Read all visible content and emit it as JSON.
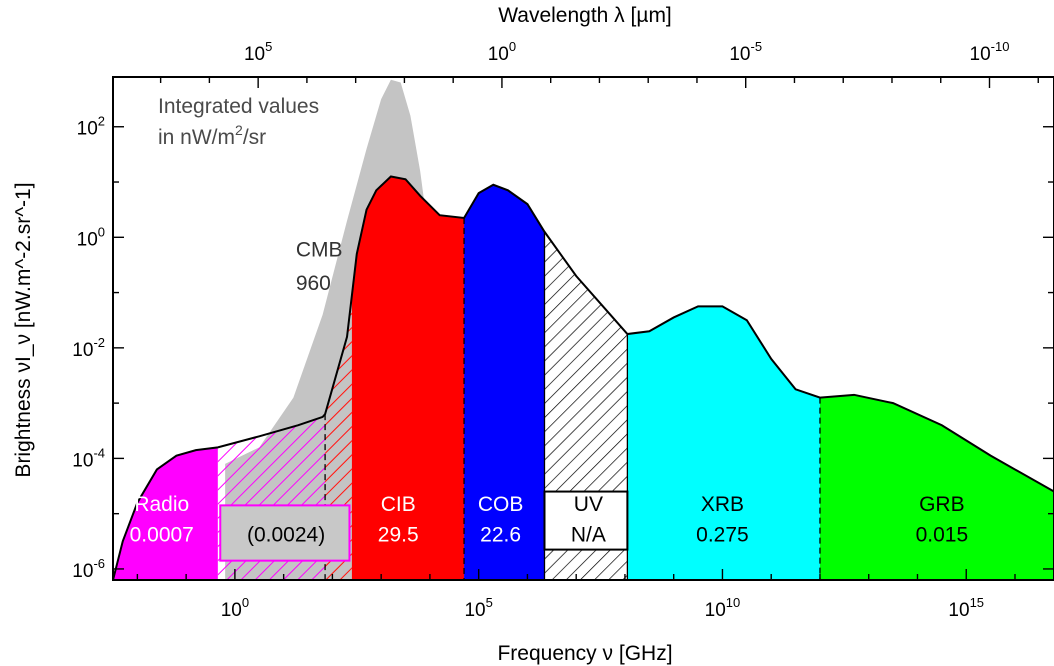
{
  "chart_data": {
    "type": "area",
    "title": "",
    "xlabel": "Frequency ν [GHz]",
    "x2label": "Wavelength λ [µm]",
    "ylabel": "Brightness νI_ν [nW.m^-2.sr^-1]",
    "x_scale": "log",
    "y_scale": "log",
    "xlim_log10_GHz": [
      -2.5,
      16.8
    ],
    "ylim_log10": [
      -6.2,
      2.9
    ],
    "x_ticks": [
      {
        "label": "10",
        "exp": "0"
      },
      {
        "label": "10",
        "exp": "5"
      },
      {
        "label": "10",
        "exp": "10"
      },
      {
        "label": "10",
        "exp": "15"
      }
    ],
    "x2_ticks": [
      {
        "label": "10",
        "exp": "5"
      },
      {
        "label": "10",
        "exp": "0"
      },
      {
        "label": "10",
        "exp": "-5"
      },
      {
        "label": "10",
        "exp": "-10"
      }
    ],
    "y_ticks": [
      {
        "label": "10",
        "exp": "2"
      },
      {
        "label": "10",
        "exp": "0"
      },
      {
        "label": "10",
        "exp": "-2"
      },
      {
        "label": "10",
        "exp": "-4"
      },
      {
        "label": "10",
        "exp": "-6"
      }
    ],
    "annotation": {
      "line1": "Integrated values",
      "line2a": "in nW/m",
      "line2sup": "2",
      "line2b": "/sr"
    },
    "cmb": {
      "name": "CMB",
      "value": "960",
      "points": [
        [
          -0.2,
          -4.1
        ],
        [
          0.5,
          -3.8
        ],
        [
          1.2,
          -2.9
        ],
        [
          1.8,
          -1.4
        ],
        [
          2.3,
          0.3
        ],
        [
          2.7,
          1.6
        ],
        [
          3.0,
          2.5
        ],
        [
          3.2,
          2.85
        ],
        [
          3.4,
          2.8
        ],
        [
          3.6,
          2.2
        ],
        [
          3.8,
          1.2
        ],
        [
          3.95,
          0.2
        ],
        [
          4.1,
          -1.0
        ],
        [
          4.2,
          -2.0
        ]
      ]
    },
    "cib_region": {
      "name": "CIB",
      "value": "29.5",
      "x_range": [
        2.4,
        4.7
      ]
    },
    "cob_region": {
      "name": "COB",
      "value": "22.6",
      "x_range": [
        4.7,
        6.35
      ]
    },
    "uv_region": {
      "name": "UV",
      "value": "N/A",
      "x_range": [
        6.35,
        8.05
      ]
    },
    "xrb_region": {
      "name": "XRB",
      "value": "0.275",
      "x_range": [
        8.05,
        12.0
      ]
    },
    "grb_region": {
      "name": "GRB",
      "value": "0.015",
      "x_range": [
        12.0,
        16.8
      ]
    },
    "radio_region": {
      "name": "Radio",
      "value": "0.0007",
      "x_range": [
        -2.5,
        -0.35
      ]
    },
    "unknown_region": {
      "name": "",
      "value": "(0.0024)",
      "x_range": [
        -0.35,
        2.4
      ]
    },
    "envelope": [
      [
        -2.5,
        -6.2
      ],
      [
        -2.3,
        -5.5
      ],
      [
        -2.0,
        -4.8
      ],
      [
        -1.6,
        -4.2
      ],
      [
        -1.2,
        -3.95
      ],
      [
        -0.8,
        -3.85
      ],
      [
        -0.35,
        -3.8
      ],
      [
        0.5,
        -3.6
      ],
      [
        1.3,
        -3.4
      ],
      [
        1.8,
        -3.25
      ],
      [
        1.85,
        -3.2
      ],
      [
        2.3,
        -1.8
      ],
      [
        2.5,
        -0.3
      ],
      [
        2.7,
        0.5
      ],
      [
        2.9,
        0.85
      ],
      [
        3.2,
        1.1
      ],
      [
        3.5,
        1.05
      ],
      [
        3.8,
        0.75
      ],
      [
        4.2,
        0.4
      ],
      [
        4.7,
        0.35
      ],
      [
        5.0,
        0.8
      ],
      [
        5.3,
        0.95
      ],
      [
        5.6,
        0.85
      ],
      [
        6.0,
        0.6
      ],
      [
        6.35,
        0.1
      ],
      [
        7.0,
        -0.7
      ],
      [
        7.7,
        -1.4
      ],
      [
        8.05,
        -1.75
      ],
      [
        8.5,
        -1.7
      ],
      [
        9.0,
        -1.45
      ],
      [
        9.5,
        -1.25
      ],
      [
        10.0,
        -1.25
      ],
      [
        10.5,
        -1.5
      ],
      [
        11.0,
        -2.2
      ],
      [
        11.5,
        -2.75
      ],
      [
        12.0,
        -2.9
      ],
      [
        12.7,
        -2.85
      ],
      [
        13.5,
        -3.0
      ],
      [
        14.5,
        -3.4
      ],
      [
        15.5,
        -3.95
      ],
      [
        16.8,
        -4.6
      ]
    ]
  }
}
